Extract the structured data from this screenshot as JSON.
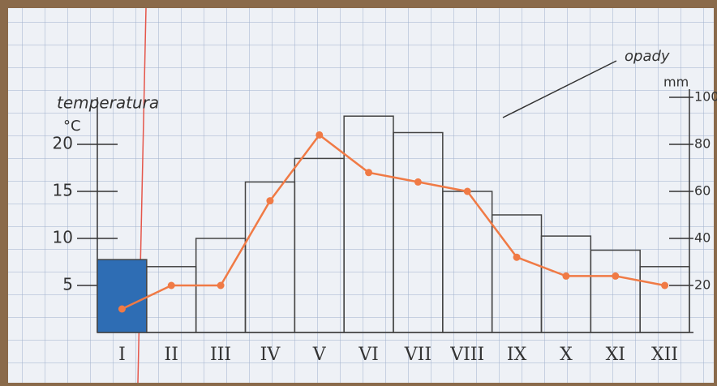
{
  "chart_data": {
    "type": "bar-line",
    "y_label": "temperatura",
    "y_unit": "°C",
    "y2_label": "opady",
    "y2_unit": "mm",
    "categories": [
      "I",
      "II",
      "III",
      "IV",
      "V",
      "VI",
      "VII",
      "VIII",
      "IX",
      "X",
      "XI",
      "XII"
    ],
    "series": [
      {
        "type": "bar",
        "axis": "y2",
        "color": "#444444",
        "fills": [
          "#2e6db4",
          "none",
          "none",
          "none",
          "none",
          "none",
          "none",
          "none",
          "none",
          "none",
          "none",
          "none"
        ],
        "values": [
          31,
          28,
          40,
          64,
          74,
          92,
          85,
          60,
          50,
          41,
          35,
          28
        ]
      },
      {
        "type": "line",
        "axis": "y",
        "color": "#f07a45",
        "values": [
          2.5,
          5,
          5,
          14,
          21,
          17,
          16,
          15,
          8,
          6,
          6,
          5
        ]
      }
    ],
    "ylim": [
      0,
      25
    ],
    "yticks": [
      5,
      10,
      15,
      20
    ],
    "y2lim": [
      0,
      100
    ],
    "y2ticks": [
      20,
      40,
      60,
      80,
      100
    ]
  }
}
